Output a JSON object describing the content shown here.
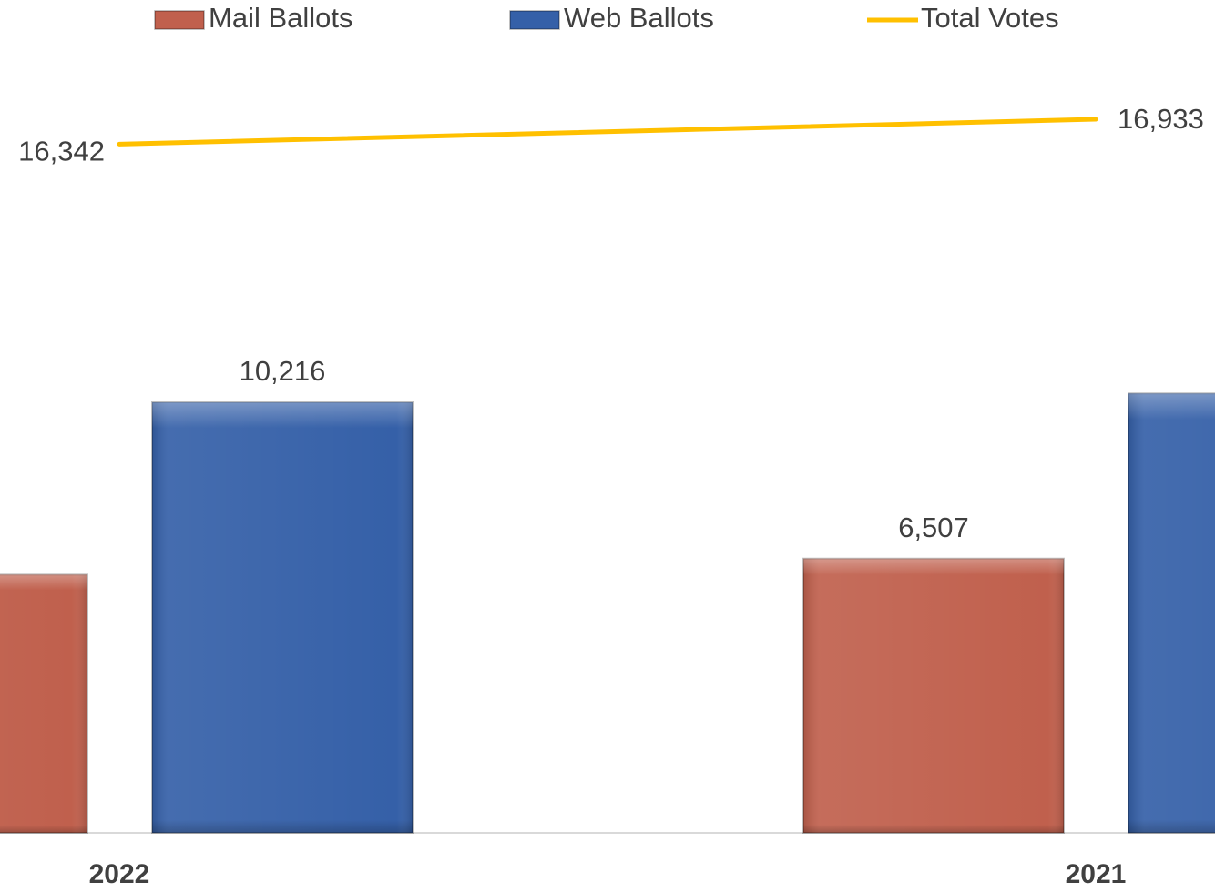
{
  "chart_data": {
    "type": "bar",
    "categories": [
      "2022",
      "2021"
    ],
    "series": [
      {
        "name": "Mail Ballots",
        "color": "#c0604d",
        "values": [
          6126,
          6507
        ],
        "value_labels": [
          null,
          "6,507"
        ]
      },
      {
        "name": "Web Ballots",
        "color": "#3560a8",
        "values": [
          10216,
          10426
        ],
        "value_labels": [
          "10,216",
          null
        ]
      },
      {
        "name": "Total Votes",
        "color": "#ffc000",
        "type": "line",
        "values": [
          16342,
          16933
        ],
        "value_labels": [
          "16,342",
          "16,933"
        ]
      }
    ],
    "ylim": [
      0,
      20000
    ],
    "legend": "top"
  }
}
